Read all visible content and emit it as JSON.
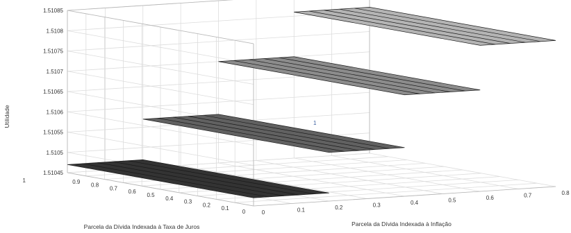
{
  "chart_data": {
    "type": "surface",
    "title": "",
    "xlabel": "Parcela da Dívida Indexada à Inflação",
    "ylabel": "Parcela da Dívida Indexada à Taxa de Juros",
    "zlabel": "Utilidade",
    "x_ticks": [
      "0",
      "0.1",
      "0.2",
      "0.3",
      "0.4",
      "0.5",
      "0.6",
      "0.7",
      "0.8"
    ],
    "y_ticks": [
      "0",
      "0.1",
      "0.2",
      "0.3",
      "0.4",
      "0.5",
      "0.6",
      "0.7",
      "0.8",
      "0.9",
      "1"
    ],
    "z_ticks": [
      "1.51045",
      "1.5105",
      "1.51055",
      "1.5106",
      "1.51065",
      "1.5107",
      "1.51075",
      "1.5108",
      "1.51085"
    ],
    "xlim": [
      0,
      0.8
    ],
    "ylim": [
      0,
      1
    ],
    "zlim": [
      1.51045,
      1.51085
    ],
    "grid": true,
    "steps": [
      {
        "x_range": [
          0,
          0.2
        ],
        "value": 1.51047,
        "color": "#333333"
      },
      {
        "x_range": [
          0.2,
          0.4
        ],
        "value": 1.51057,
        "color": "#616161"
      },
      {
        "x_range": [
          0.4,
          0.6
        ],
        "value": 1.5107,
        "color": "#8c8c8c"
      },
      {
        "x_range": [
          0.6,
          0.8
        ],
        "value": 1.51081,
        "color": "#b4b4b4"
      }
    ],
    "annotation_text": "1"
  }
}
